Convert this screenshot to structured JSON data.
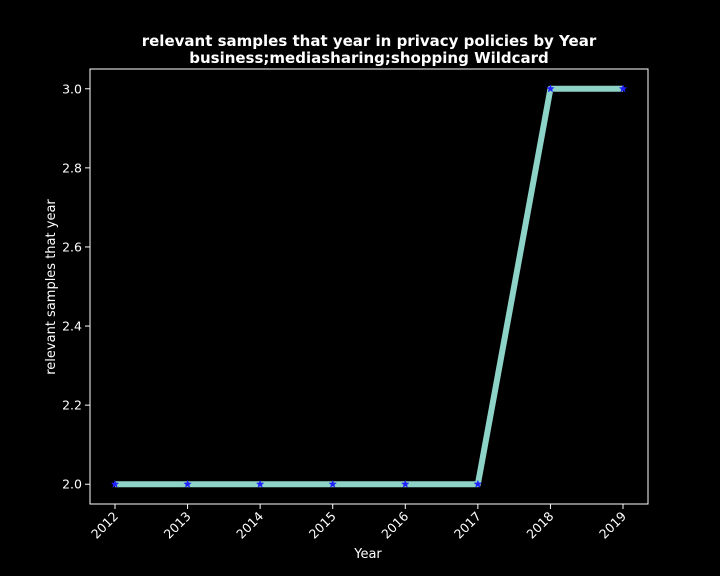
{
  "chart_data": {
    "type": "line",
    "title": "relevant samples that year in privacy policies by Year",
    "subtitle": "business;mediasharing;shopping Wildcard",
    "xlabel": "Year",
    "ylabel": "relevant samples that year",
    "x": [
      "2012",
      "2013",
      "2014",
      "2015",
      "2016",
      "2017",
      "2018",
      "2019"
    ],
    "series": [
      {
        "values": [
          2,
          2,
          2,
          2,
          2,
          2,
          3,
          3
        ]
      }
    ],
    "yticks": [
      "2.0",
      "2.2",
      "2.4",
      "2.6",
      "2.8",
      "3.0"
    ],
    "ylim": [
      1.95,
      3.05
    ],
    "grid": false,
    "legend": "none",
    "colors": {
      "background": "#000000",
      "line": "#8dd3c7",
      "marker": "#1f1fff",
      "axes": "#ffffff",
      "text": "#ffffff"
    },
    "marker": "star"
  }
}
